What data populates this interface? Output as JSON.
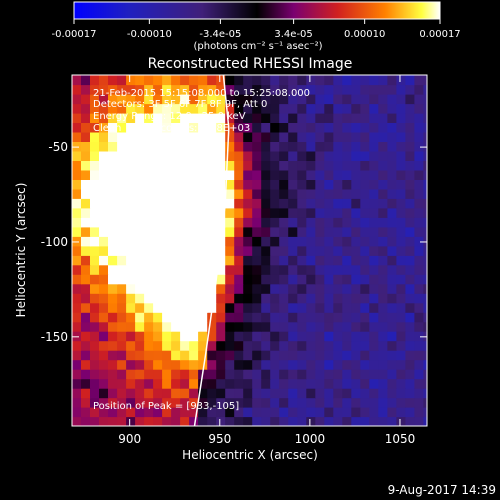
{
  "chart_data": {
    "type": "heatmap",
    "title": "Reconstructed RHESSI Image",
    "xlabel": "Heliocentric X (arcsec)",
    "ylabel": "Heliocentric Y (arcsec)",
    "xlim": [
      868,
      1065
    ],
    "ylim": [
      -197,
      -12
    ],
    "x_ticks": [
      900,
      950,
      1000,
      1050
    ],
    "x_tick_labels": [
      "900",
      "950",
      "1000",
      "1050"
    ],
    "y_ticks": [
      -50,
      -100,
      -150
    ],
    "y_tick_labels": [
      "-50",
      "-100",
      "-150"
    ],
    "colorbar": {
      "range": [
        -0.00017,
        0.00017
      ],
      "tick_labels": [
        "-0.00017",
        "-0.00010",
        "-3.4e-05",
        "3.4e-05",
        "0.00010",
        "0.00017"
      ],
      "unit_label": "(photons cm⁻² s⁻¹ asec⁻²)"
    },
    "annotations": [
      "21-Feb-2015 15:15:08.000 to 15:25:08.000",
      "Detectors: 3F 5F 6F 7F 8F 9F, Att 0",
      "Energy Range: 12.0 - 25.0 keV",
      "Clean    Total counts: 5.18E+03"
    ],
    "peak_label": "Position of Peak = [933,-105]",
    "peak_position": [
      933,
      -105
    ],
    "emission_sources": [
      {
        "x": 933,
        "y": -105,
        "intensity": 0.00017
      },
      {
        "x": 897,
        "y": -78,
        "intensity": 0.00014
      },
      {
        "x": 970,
        "y": -70,
        "intensity": 0.00013
      },
      {
        "x": 925,
        "y": -45,
        "intensity": 0.0001
      },
      {
        "x": 940,
        "y": -145,
        "intensity": 8e-05
      }
    ],
    "limb_curve": [
      [
        952,
        -12
      ],
      [
        955,
        -40
      ],
      [
        953,
        -80
      ],
      [
        948,
        -120
      ],
      [
        942,
        -160
      ],
      [
        936,
        -197
      ]
    ],
    "colors": {
      "background": "#000000",
      "negative_low": "#0000ff",
      "mid": "#000000",
      "positive_mid": "#d02000",
      "positive_high": "#ffffff"
    }
  },
  "footer": {
    "date": "9-Aug-2017 14:39"
  }
}
